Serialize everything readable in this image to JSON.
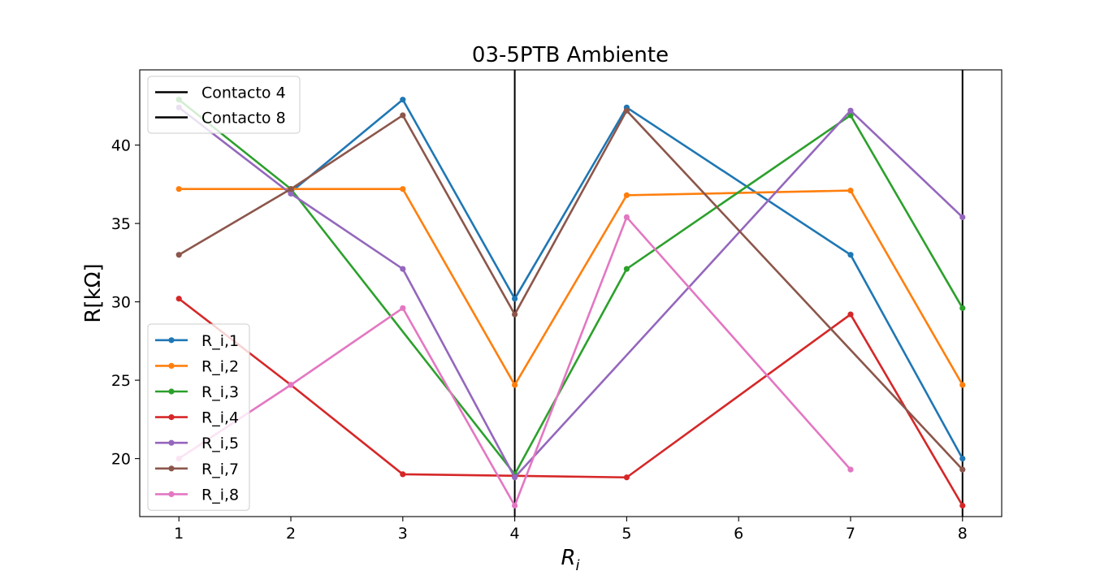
{
  "chart_data": {
    "type": "line",
    "title": "03-5PTB Ambiente",
    "xlabel_main": "R",
    "xlabel_sub": "i",
    "ylabel": "R[kΩ]",
    "xlim": [
      0.65,
      8.35
    ],
    "ylim": [
      16.3,
      44.8
    ],
    "grid": false,
    "x_ticks": [
      1,
      2,
      3,
      4,
      5,
      6,
      7,
      8
    ],
    "y_ticks": [
      20,
      25,
      30,
      35,
      40
    ],
    "x_tick_labels": [
      "1",
      "2",
      "3",
      "4",
      "5",
      "6",
      "7",
      "8"
    ],
    "y_tick_labels": [
      "20",
      "25",
      "30",
      "35",
      "40"
    ],
    "legend_top_position": "top-left",
    "legend_bottom_position": "lower-left",
    "vertical_lines": [
      {
        "name": "Contacto 4",
        "x": 4,
        "color": "#000000"
      },
      {
        "name": "Contacto 8",
        "x": 8,
        "color": "#000000"
      }
    ],
    "series": [
      {
        "name": "R_i,1",
        "color": "#1f77b4",
        "x": [
          2,
          3,
          4,
          5,
          7,
          8
        ],
        "y": [
          37.0,
          42.9,
          30.2,
          42.4,
          33.0,
          20.0
        ]
      },
      {
        "name": "R_i,2",
        "color": "#ff7f0e",
        "x": [
          1,
          2,
          3,
          4,
          5,
          7,
          8
        ],
        "y": [
          37.2,
          37.2,
          37.2,
          24.7,
          36.8,
          37.1,
          24.7
        ]
      },
      {
        "name": "R_i,3",
        "color": "#2ca02c",
        "x": [
          1,
          2,
          4,
          5,
          7,
          8
        ],
        "y": [
          42.9,
          37.2,
          19.0,
          32.1,
          41.9,
          29.6
        ]
      },
      {
        "name": "R_i,4",
        "color": "#d62728",
        "x": [
          1,
          2,
          3,
          5,
          7,
          8
        ],
        "y": [
          30.2,
          24.7,
          19.0,
          18.8,
          29.2,
          17.0
        ]
      },
      {
        "name": "R_i,5",
        "color": "#9467bd",
        "x": [
          1,
          2,
          3,
          4,
          7,
          8
        ],
        "y": [
          42.4,
          36.9,
          32.1,
          18.8,
          42.2,
          35.4
        ]
      },
      {
        "name": "R_i,7",
        "color": "#8c564b",
        "x": [
          1,
          2,
          3,
          4,
          5,
          8
        ],
        "y": [
          33.0,
          37.2,
          41.9,
          29.2,
          42.2,
          19.3
        ]
      },
      {
        "name": "R_i,8",
        "color": "#e377c2",
        "x": [
          1,
          2,
          3,
          4,
          5,
          7
        ],
        "y": [
          20.0,
          24.7,
          29.6,
          17.0,
          35.4,
          19.3
        ]
      }
    ]
  }
}
